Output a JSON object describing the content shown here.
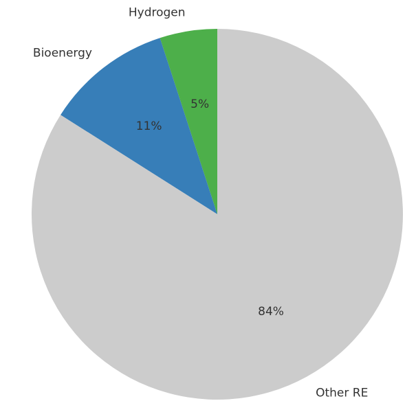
{
  "chart_data": {
    "type": "pie",
    "categories": [
      "Hydrogen",
      "Bioenergy",
      "Other RE"
    ],
    "values": [
      5,
      11,
      84
    ],
    "value_labels": [
      "5%",
      "11%",
      "84%"
    ],
    "colors": [
      "#4daf4a",
      "#377eb8",
      "#cccccc"
    ]
  }
}
